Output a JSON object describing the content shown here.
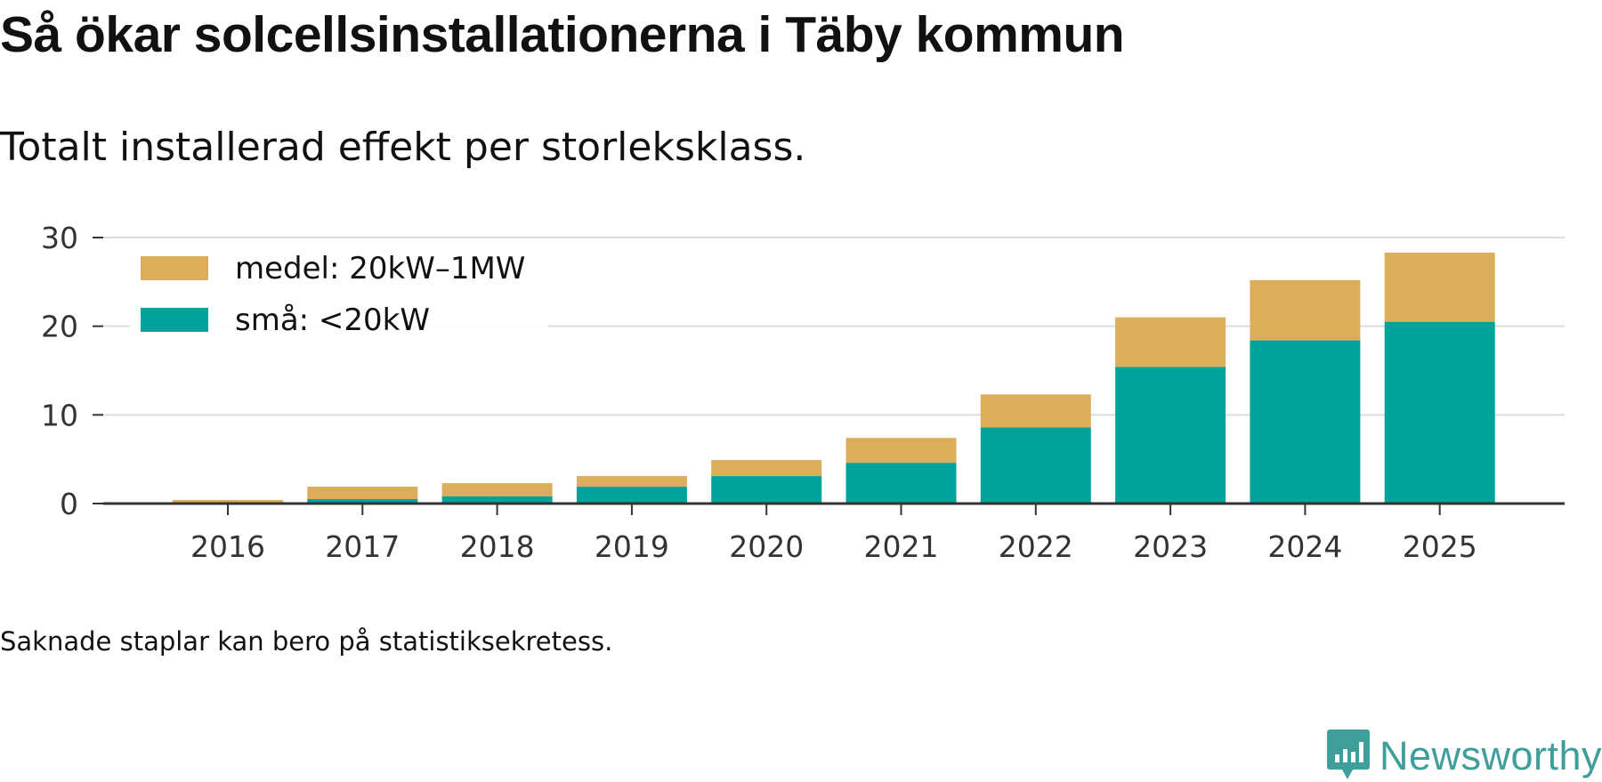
{
  "title": "Så ökar solcellsinstallationerna i Täby kommun",
  "subtitle": "Totalt installerad effekt per storleksklass.",
  "note": "Saknade staplar kan bero på statistiksekretess.",
  "brand": {
    "name": "Newsworthy",
    "color": "#3e9f9a",
    "icon": "newsworthy-logo-icon"
  },
  "chart_data": {
    "type": "bar",
    "stacked": true,
    "title": "Så ökar solcellsinstallationerna i Täby kommun",
    "subtitle": "Totalt installerad effekt per storleksklass.",
    "xlabel": "",
    "ylabel": "",
    "categories": [
      "2016",
      "2017",
      "2018",
      "2019",
      "2020",
      "2021",
      "2022",
      "2023",
      "2024",
      "2025"
    ],
    "ylim": [
      0,
      30
    ],
    "yticks": [
      0,
      10,
      20,
      30
    ],
    "grid": true,
    "legend_position": "top-left",
    "series": [
      {
        "name": "små: <20kW",
        "color": "#00a39a",
        "values": [
          0.1,
          0.5,
          0.8,
          1.9,
          3.1,
          4.6,
          8.6,
          15.4,
          18.4,
          20.5
        ]
      },
      {
        "name": "medel: 20kW–1MW",
        "color": "#dcad5a",
        "values": [
          0.3,
          1.4,
          1.5,
          1.2,
          1.8,
          2.8,
          3.7,
          5.6,
          6.8,
          7.8
        ]
      }
    ],
    "legend_order": [
      1,
      0
    ]
  }
}
